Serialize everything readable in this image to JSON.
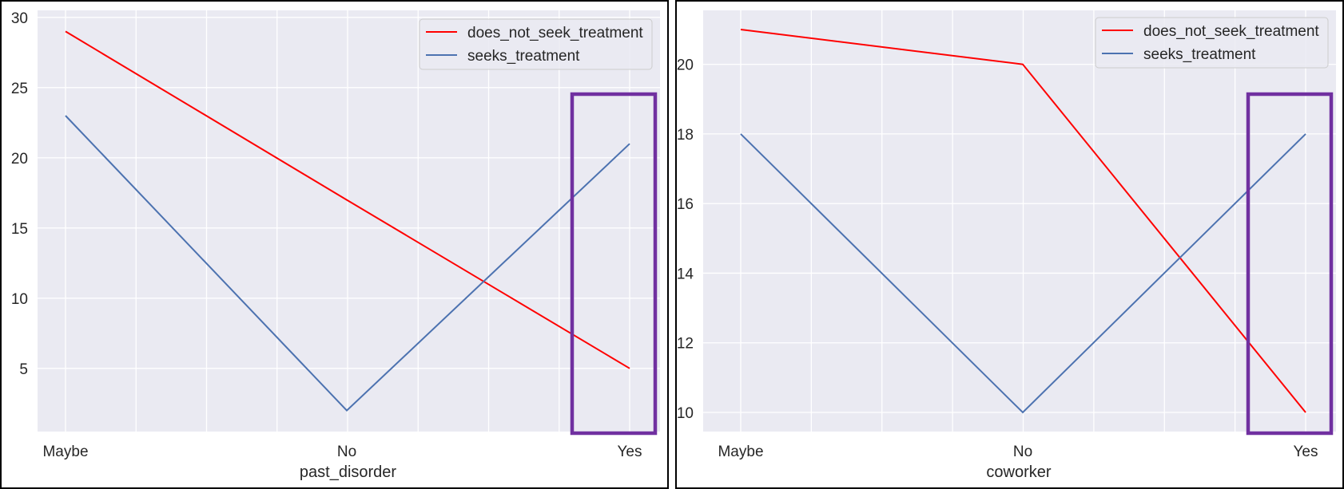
{
  "charts": [
    {
      "chart_data": {
        "type": "line",
        "categories": [
          "Maybe",
          "No",
          "Yes"
        ],
        "series": [
          {
            "name": "does_not_seek_treatment",
            "values": [
              29,
              17,
              5
            ],
            "color": "#ff0000"
          },
          {
            "name": "seeks_treatment",
            "values": [
              23,
              2,
              21
            ],
            "color": "#4c72b0"
          }
        ],
        "xlabel": "past_disorder",
        "ylabel": "",
        "ylim": [
          0.5,
          30.5
        ],
        "yticks": [
          5,
          10,
          15,
          20,
          25,
          30
        ],
        "grid": true,
        "legend": "top-right",
        "highlight": {
          "category": "Yes",
          "color": "#7030a0"
        }
      }
    },
    {
      "chart_data": {
        "type": "line",
        "categories": [
          "Maybe",
          "No",
          "Yes"
        ],
        "series": [
          {
            "name": "does_not_seek_treatment",
            "values": [
              21,
              20,
              10
            ],
            "color": "#ff0000"
          },
          {
            "name": "seeks_treatment",
            "values": [
              18,
              10,
              18
            ],
            "color": "#4c72b0"
          }
        ],
        "xlabel": "coworker",
        "ylabel": "",
        "ylim": [
          9.45,
          21.55
        ],
        "yticks": [
          10,
          12,
          14,
          16,
          18,
          20
        ],
        "grid": true,
        "legend": "top-right",
        "highlight": {
          "category": "Yes",
          "color": "#7030a0"
        }
      }
    }
  ],
  "colors": {
    "plot_background": "#eaeaf2",
    "grid": "#ffffff",
    "panel_border": "#000000"
  }
}
